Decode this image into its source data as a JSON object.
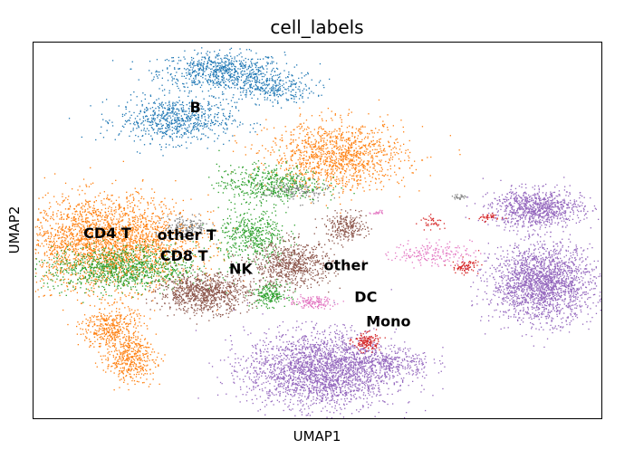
{
  "chart_data": {
    "type": "scatter",
    "title": "cell_labels",
    "xlabel": "UMAP1",
    "ylabel": "UMAP2",
    "xlim": [
      0,
      100
    ],
    "ylim": [
      0,
      100
    ],
    "ticks": "none",
    "grid": false,
    "categories": [
      "B",
      "CD4 T",
      "other T",
      "CD8 T",
      "NK",
      "other",
      "DC",
      "Mono"
    ],
    "colors": {
      "B": "#1f77b4",
      "CD4 T": "#ff7f0e",
      "CD8 T": "#2ca02c",
      "NK": "#8c564b",
      "DC": "#d62728",
      "Mono": "#9467bd",
      "other": "#e377c2",
      "other T": "#7f7f7f"
    },
    "cluster_labels": [
      {
        "text": "B",
        "x": 28.5,
        "y": 82.5
      },
      {
        "text": "CD4 T",
        "x": 13.0,
        "y": 49.0
      },
      {
        "text": "other T",
        "x": 27.0,
        "y": 48.5
      },
      {
        "text": "CD8 T",
        "x": 26.5,
        "y": 43.0
      },
      {
        "text": "NK",
        "x": 36.5,
        "y": 39.5
      },
      {
        "text": "other",
        "x": 55.0,
        "y": 40.5
      },
      {
        "text": "DC",
        "x": 58.5,
        "y": 32.0
      },
      {
        "text": "Mono",
        "x": 62.5,
        "y": 25.5
      }
    ],
    "clusters": [
      {
        "category": "B",
        "x": 33.0,
        "y": 92.5,
        "sx": 5.5,
        "sy": 2.5,
        "n": 700
      },
      {
        "category": "B",
        "x": 41.5,
        "y": 88.0,
        "sx": 4.0,
        "sy": 2.0,
        "n": 300
      },
      {
        "category": "B",
        "x": 25.0,
        "y": 79.5,
        "sx": 5.0,
        "sy": 3.0,
        "n": 700
      },
      {
        "category": "CD4 T",
        "x": 13.0,
        "y": 47.0,
        "sx": 7.5,
        "sy": 6.0,
        "n": 2600
      },
      {
        "category": "CD4 T",
        "x": 53.5,
        "y": 70.0,
        "sx": 6.0,
        "sy": 4.5,
        "n": 1200
      },
      {
        "category": "CD4 T",
        "x": 13.5,
        "y": 24.0,
        "sx": 2.5,
        "sy": 3.0,
        "n": 400
      },
      {
        "category": "CD4 T",
        "x": 17.0,
        "y": 16.0,
        "sx": 2.2,
        "sy": 3.0,
        "n": 400
      },
      {
        "category": "CD8 T",
        "x": 15.5,
        "y": 40.0,
        "sx": 6.5,
        "sy": 3.0,
        "n": 1000
      },
      {
        "category": "CD8 T",
        "x": 41.5,
        "y": 62.5,
        "sx": 4.5,
        "sy": 2.5,
        "n": 500
      },
      {
        "category": "CD8 T",
        "x": 38.5,
        "y": 48.5,
        "sx": 3.0,
        "sy": 3.5,
        "n": 450
      },
      {
        "category": "CD8 T",
        "x": 41.5,
        "y": 33.0,
        "sx": 1.5,
        "sy": 1.5,
        "n": 200
      },
      {
        "category": "other T",
        "x": 27.0,
        "y": 51.0,
        "sx": 2.0,
        "sy": 1.5,
        "n": 150
      },
      {
        "category": "other T",
        "x": 46.0,
        "y": 60.5,
        "sx": 3.0,
        "sy": 1.5,
        "n": 120
      },
      {
        "category": "NK",
        "x": 30.0,
        "y": 33.5,
        "sx": 4.0,
        "sy": 2.5,
        "n": 900
      },
      {
        "category": "NK",
        "x": 45.5,
        "y": 41.0,
        "sx": 3.5,
        "sy": 3.0,
        "n": 700
      },
      {
        "category": "NK",
        "x": 55.0,
        "y": 51.0,
        "sx": 1.8,
        "sy": 1.8,
        "n": 250
      },
      {
        "category": "Mono",
        "x": 50.5,
        "y": 13.0,
        "sx": 6.5,
        "sy": 5.0,
        "n": 2400
      },
      {
        "category": "Mono",
        "x": 62.0,
        "y": 15.0,
        "sx": 4.0,
        "sy": 2.0,
        "n": 300
      },
      {
        "category": "Mono",
        "x": 89.5,
        "y": 36.0,
        "sx": 4.5,
        "sy": 5.0,
        "n": 2000
      },
      {
        "category": "Mono",
        "x": 88.5,
        "y": 56.0,
        "sx": 4.0,
        "sy": 2.5,
        "n": 900
      },
      {
        "category": "DC",
        "x": 58.5,
        "y": 20.5,
        "sx": 1.2,
        "sy": 1.2,
        "n": 140
      },
      {
        "category": "DC",
        "x": 76.0,
        "y": 40.5,
        "sx": 1.2,
        "sy": 1.0,
        "n": 80
      },
      {
        "category": "DC",
        "x": 70.0,
        "y": 52.5,
        "sx": 1.0,
        "sy": 0.8,
        "n": 40
      },
      {
        "category": "DC",
        "x": 80.0,
        "y": 53.5,
        "sx": 1.2,
        "sy": 0.6,
        "n": 40
      },
      {
        "category": "other",
        "x": 49.0,
        "y": 31.0,
        "sx": 2.0,
        "sy": 0.8,
        "n": 140
      },
      {
        "category": "other",
        "x": 70.0,
        "y": 44.0,
        "sx": 3.5,
        "sy": 1.5,
        "n": 180
      },
      {
        "category": "other",
        "x": 60.5,
        "y": 55.0,
        "sx": 0.6,
        "sy": 0.3,
        "n": 20
      },
      {
        "category": "other T",
        "x": 75.0,
        "y": 59.0,
        "sx": 0.6,
        "sy": 0.4,
        "n": 25
      }
    ]
  }
}
